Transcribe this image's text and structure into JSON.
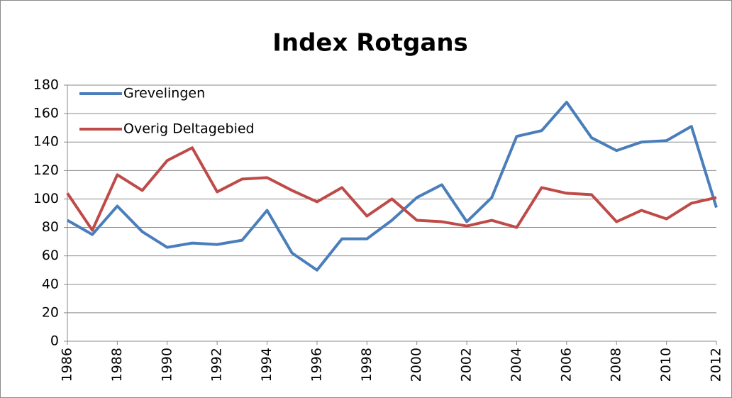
{
  "chart_data": {
    "type": "line",
    "title": "Index Rotgans",
    "x": [
      1986,
      1987,
      1988,
      1989,
      1990,
      1991,
      1992,
      1993,
      1994,
      1995,
      1996,
      1997,
      1998,
      1999,
      2000,
      2001,
      2002,
      2003,
      2004,
      2005,
      2006,
      2007,
      2008,
      2009,
      2010,
      2011,
      2012
    ],
    "series": [
      {
        "name": "Grevelingen",
        "color": "#4a7ebb",
        "values": [
          85,
          75,
          95,
          77,
          66,
          69,
          68,
          71,
          92,
          62,
          50,
          72,
          72,
          85,
          101,
          110,
          84,
          101,
          144,
          148,
          168,
          143,
          134,
          140,
          141,
          151,
          94
        ]
      },
      {
        "name": "Overig Deltagebied",
        "color": "#be4b48",
        "values": [
          104,
          78,
          117,
          106,
          127,
          136,
          105,
          114,
          115,
          106,
          98,
          108,
          88,
          100,
          85,
          84,
          81,
          85,
          80,
          108,
          104,
          103,
          84,
          92,
          86,
          97,
          101
        ]
      }
    ],
    "xlim": [
      1986,
      2012
    ],
    "xticks": [
      1986,
      1988,
      1990,
      1992,
      1994,
      1996,
      1998,
      2000,
      2002,
      2004,
      2006,
      2008,
      2010,
      2012
    ],
    "ylim": [
      0,
      180
    ],
    "yticks": [
      0,
      20,
      40,
      60,
      80,
      100,
      120,
      140,
      160,
      180
    ],
    "grid": true,
    "legend": "upper-left"
  }
}
